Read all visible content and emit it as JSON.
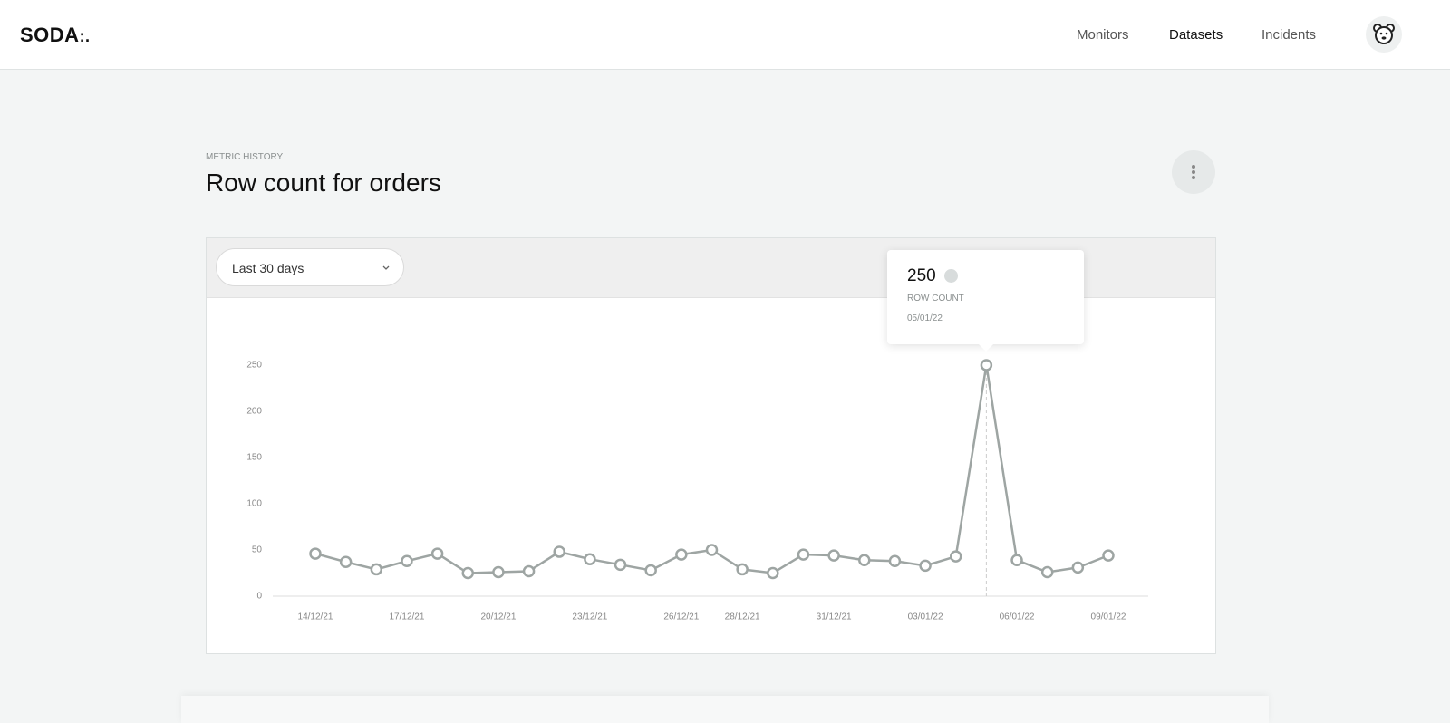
{
  "header": {
    "logo": "SODA",
    "nav": [
      "Monitors",
      "Datasets",
      "Incidents"
    ]
  },
  "section": {
    "eyebrow": "METRIC HISTORY",
    "title": "Row count for orders",
    "range": "Last 30 days"
  },
  "tooltip": {
    "value": "250",
    "label": "ROW COUNT",
    "date": "05/01/22"
  },
  "chart_data": {
    "type": "line",
    "color": "#9ea5a3",
    "categories": [
      "14/12/21",
      null,
      null,
      "17/12/21",
      null,
      null,
      "20/12/21",
      null,
      null,
      "23/12/21",
      null,
      null,
      "26/12/21",
      null,
      "28/12/21",
      null,
      null,
      "31/12/21",
      null,
      null,
      "03/01/22",
      null,
      null,
      "06/01/22",
      null,
      null,
      "09/01/22"
    ],
    "values": [
      46,
      37,
      29,
      38,
      46,
      25,
      26,
      27,
      48,
      40,
      34,
      28,
      45,
      50,
      29,
      25,
      45,
      44,
      39,
      38,
      33,
      43,
      250,
      39,
      26,
      31,
      44
    ],
    "ylim": [
      0,
      250
    ],
    "yticks": [
      0,
      50,
      100,
      150,
      200,
      250
    ]
  }
}
